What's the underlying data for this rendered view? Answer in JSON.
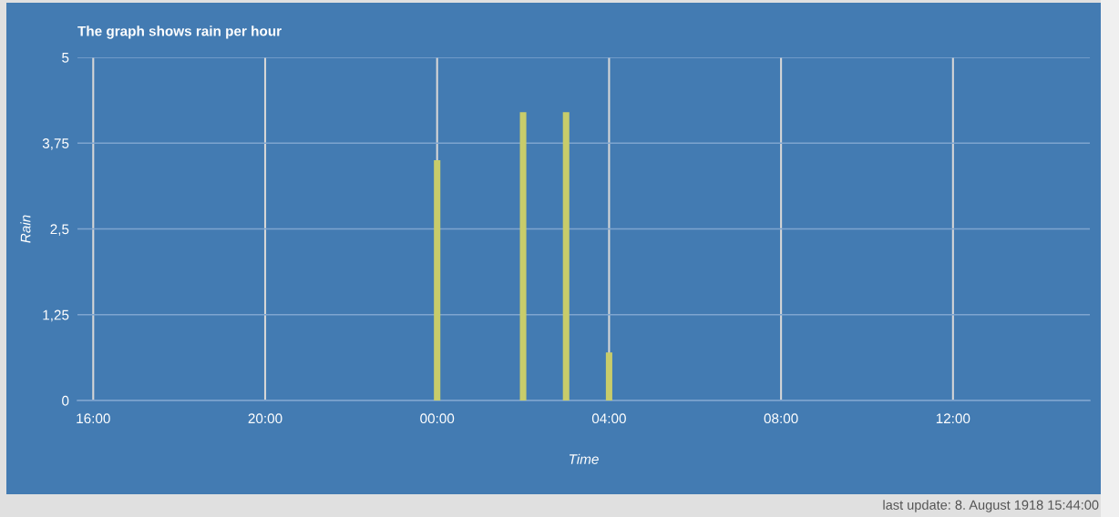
{
  "chart_data": {
    "type": "bar",
    "title": "The graph shows rain per hour",
    "xlabel": "Time",
    "ylabel": "Rain",
    "x": [
      "1918-08-08T00:00",
      "1918-08-08T02:00",
      "1918-08-08T03:00",
      "1918-08-08T04:00"
    ],
    "values": [
      3.5,
      4.2,
      4.2,
      0.7
    ],
    "color": "#c8cc6a",
    "xlim": [
      "1918-08-07T15:38",
      "1918-08-08T15:11"
    ],
    "xticks": [
      {
        "value": "1918-08-07T16:00",
        "label": "16:00"
      },
      {
        "value": "1918-08-07T20:00",
        "label": "20:00"
      },
      {
        "value": "1918-08-08T00:00",
        "label": "00:00"
      },
      {
        "value": "1918-08-08T04:00",
        "label": "04:00"
      },
      {
        "value": "1918-08-08T08:00",
        "label": "08:00"
      },
      {
        "value": "1918-08-08T12:00",
        "label": "12:00"
      }
    ],
    "ylim": [
      0,
      5
    ],
    "yticks": [
      0,
      {
        "value": 1.25,
        "label": "1,25"
      },
      {
        "value": 2.5,
        "label": "2,5"
      },
      {
        "value": 3.75,
        "label": "3,75"
      },
      5
    ],
    "grid": true,
    "annotations": [
      "last update: 8. August 1918 15:44:00"
    ]
  }
}
